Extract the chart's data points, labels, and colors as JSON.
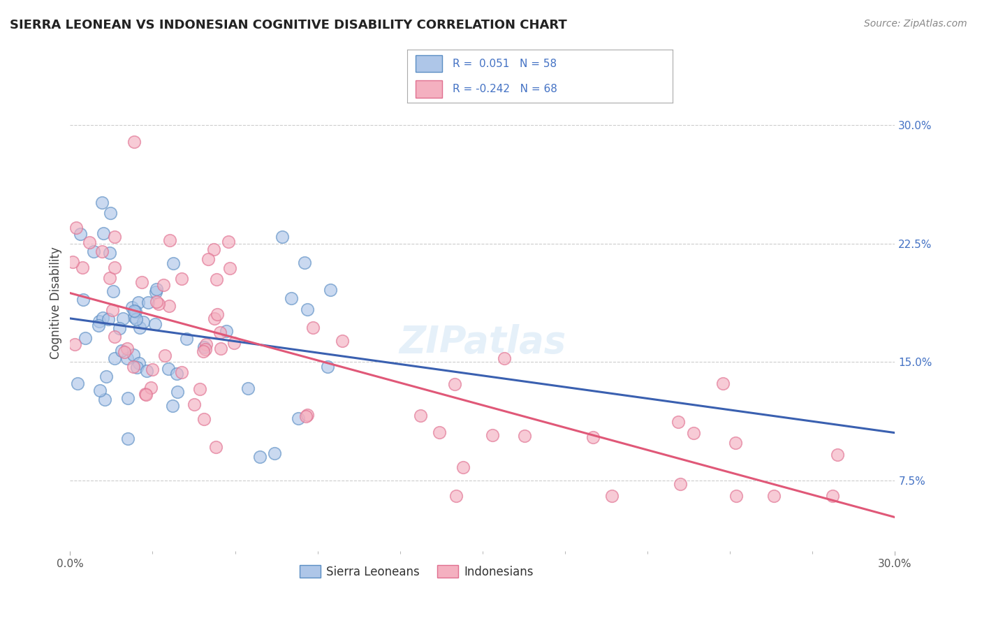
{
  "title": "SIERRA LEONEAN VS INDONESIAN COGNITIVE DISABILITY CORRELATION CHART",
  "source": "Source: ZipAtlas.com",
  "ylabel": "Cognitive Disability",
  "ytick_vals": [
    0.075,
    0.15,
    0.225,
    0.3
  ],
  "ytick_labels": [
    "7.5%",
    "15.0%",
    "22.5%",
    "30.0%"
  ],
  "xlim": [
    0.0,
    0.3
  ],
  "ylim": [
    0.03,
    0.345
  ],
  "color_sl_fill": "#aec6e8",
  "color_sl_edge": "#5b8ec4",
  "color_id_fill": "#f4b0c0",
  "color_id_edge": "#e07090",
  "line_color_sl": "#3a60b0",
  "line_color_id": "#e05878",
  "background_color": "#ffffff",
  "grid_color": "#cccccc",
  "sl_N": 58,
  "id_N": 68,
  "title_fontsize": 13,
  "source_fontsize": 10,
  "tick_fontsize": 11,
  "legend_fontsize": 12,
  "ylabel_fontsize": 12
}
